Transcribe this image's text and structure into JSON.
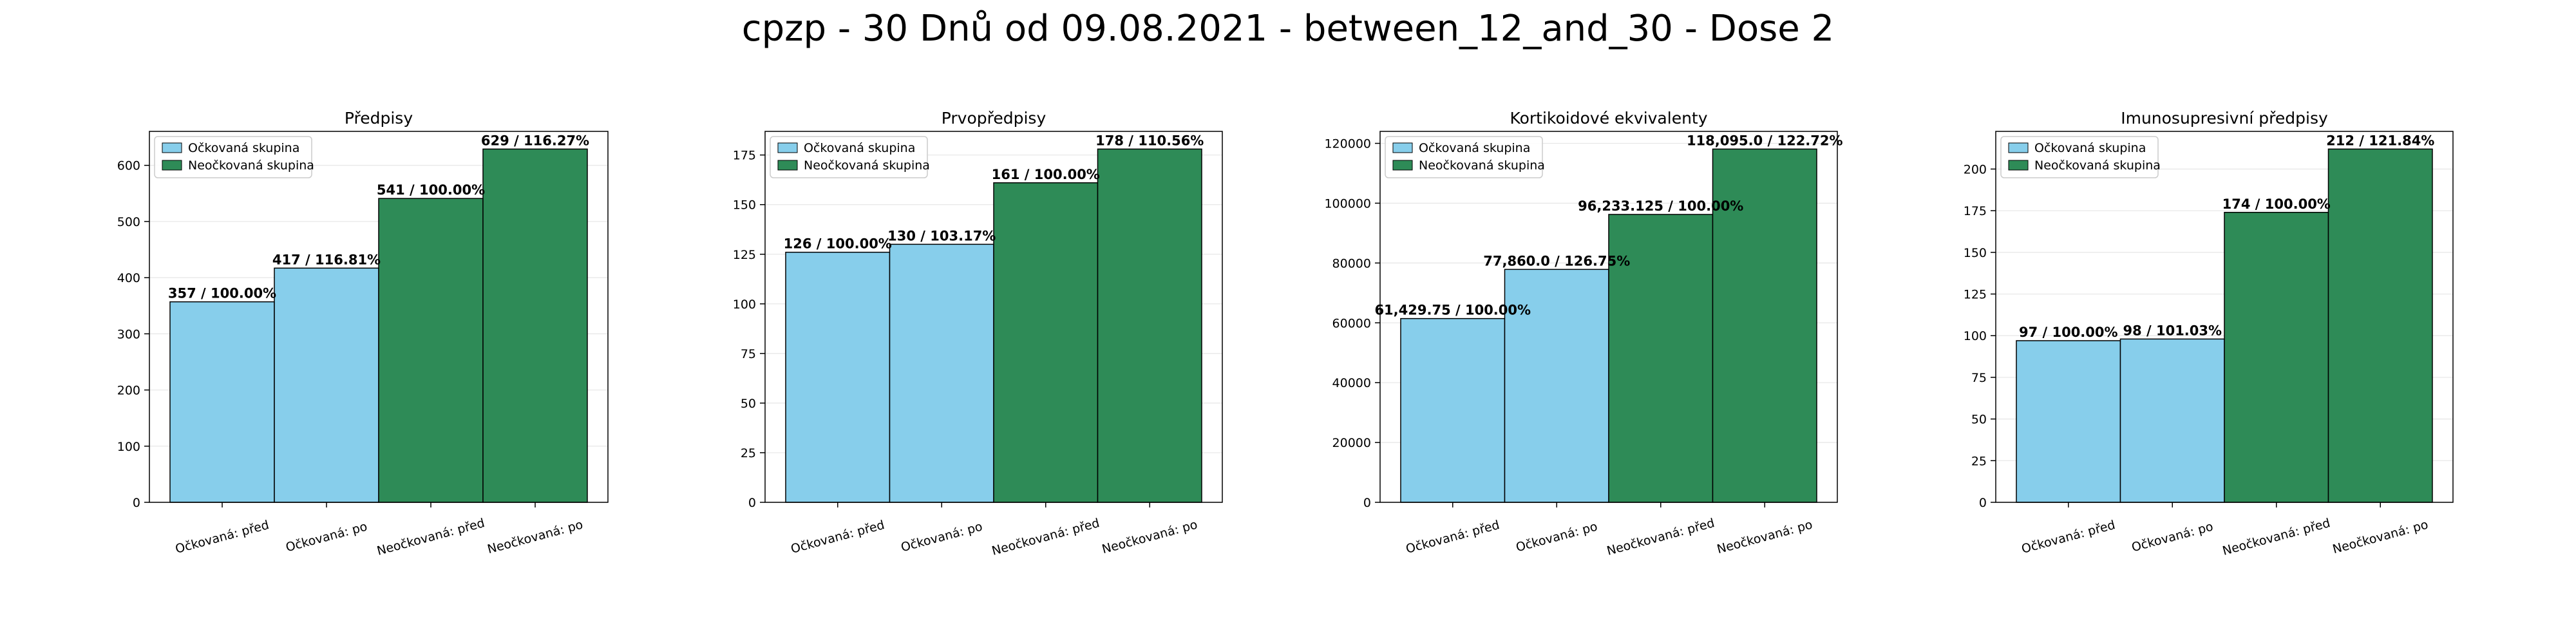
{
  "title": "cpzp - 30 Dnů od 09.08.2021 - between_12_and_30 - Dose 2",
  "colors": {
    "vaccinated": "#87ceeb",
    "unvaccinated": "#2e8b57",
    "edge": "#000000",
    "grid": "#e6e6e6"
  },
  "chart_data": [
    {
      "type": "bar",
      "title": "Předpisy",
      "categories": [
        "Očkovaná: před",
        "Očkovaná: po",
        "Neočkovaná: před",
        "Neočkovaná: po"
      ],
      "values": [
        357,
        417,
        541,
        629
      ],
      "bar_labels": [
        "357 / 100.00%",
        "417 / 116.81%",
        "541 / 100.00%",
        "629 / 116.27%"
      ],
      "bar_groups": [
        "vaccinated",
        "vaccinated",
        "unvaccinated",
        "unvaccinated"
      ],
      "yticks": [
        0,
        100,
        200,
        300,
        400,
        500,
        600
      ],
      "ytick_labels": [
        "0",
        "100",
        "200",
        "300",
        "400",
        "500",
        "600"
      ],
      "ylim": [
        0,
        660.45
      ],
      "grid": true,
      "legend": {
        "placement": "top-left",
        "entries": [
          {
            "label": "Očkovaná skupina",
            "group": "vaccinated"
          },
          {
            "label": "Neočkovaná skupina",
            "group": "unvaccinated"
          }
        ]
      }
    },
    {
      "type": "bar",
      "title": "Prvopředpisy",
      "categories": [
        "Očkovaná: před",
        "Očkovaná: po",
        "Neočkovaná: před",
        "Neočkovaná: po"
      ],
      "values": [
        126,
        130,
        161,
        178
      ],
      "bar_labels": [
        "126 / 100.00%",
        "130 / 103.17%",
        "161 / 100.00%",
        "178 / 110.56%"
      ],
      "bar_groups": [
        "vaccinated",
        "vaccinated",
        "unvaccinated",
        "unvaccinated"
      ],
      "yticks": [
        0,
        25,
        50,
        75,
        100,
        125,
        150,
        175
      ],
      "ytick_labels": [
        "0",
        "25",
        "50",
        "75",
        "100",
        "125",
        "150",
        "175"
      ],
      "ylim": [
        0,
        186.9
      ],
      "grid": true,
      "legend": {
        "placement": "top-left",
        "entries": [
          {
            "label": "Očkovaná skupina",
            "group": "vaccinated"
          },
          {
            "label": "Neočkovaná skupina",
            "group": "unvaccinated"
          }
        ]
      }
    },
    {
      "type": "bar",
      "title": "Kortikoidové ekvivalenty",
      "categories": [
        "Očkovaná: před",
        "Očkovaná: po",
        "Neočkovaná: před",
        "Neočkovaná: po"
      ],
      "values": [
        61429.75,
        77860.0,
        96233.125,
        118095.0
      ],
      "bar_labels": [
        "61,429.75 / 100.00%",
        "77,860.0 / 126.75%",
        "96,233.125 / 100.00%",
        "118,095.0 / 122.72%"
      ],
      "bar_groups": [
        "vaccinated",
        "vaccinated",
        "unvaccinated",
        "unvaccinated"
      ],
      "yticks": [
        0,
        20000,
        40000,
        60000,
        80000,
        100000,
        120000
      ],
      "ytick_labels": [
        "0",
        "20000",
        "40000",
        "60000",
        "80000",
        "100000",
        "120000"
      ],
      "ylim": [
        0,
        124000
      ],
      "grid": true,
      "legend": {
        "placement": "top-left",
        "entries": [
          {
            "label": "Očkovaná skupina",
            "group": "vaccinated"
          },
          {
            "label": "Neočkovaná skupina",
            "group": "unvaccinated"
          }
        ]
      }
    },
    {
      "type": "bar",
      "title": "Imunosupresivní předpisy",
      "categories": [
        "Očkovaná: před",
        "Očkovaná: po",
        "Neočkovaná: před",
        "Neočkovaná: po"
      ],
      "values": [
        97,
        98,
        174,
        212
      ],
      "bar_labels": [
        "97 / 100.00%",
        "98 / 101.03%",
        "174 / 100.00%",
        "212 / 121.84%"
      ],
      "bar_groups": [
        "vaccinated",
        "vaccinated",
        "unvaccinated",
        "unvaccinated"
      ],
      "yticks": [
        0,
        25,
        50,
        75,
        100,
        125,
        150,
        175,
        200
      ],
      "ytick_labels": [
        "0",
        "25",
        "50",
        "75",
        "100",
        "125",
        "150",
        "175",
        "200"
      ],
      "ylim": [
        0,
        222.6
      ],
      "grid": true,
      "legend": {
        "placement": "top-left",
        "entries": [
          {
            "label": "Očkovaná skupina",
            "group": "vaccinated"
          },
          {
            "label": "Neočkovaná skupina",
            "group": "unvaccinated"
          }
        ]
      }
    }
  ]
}
